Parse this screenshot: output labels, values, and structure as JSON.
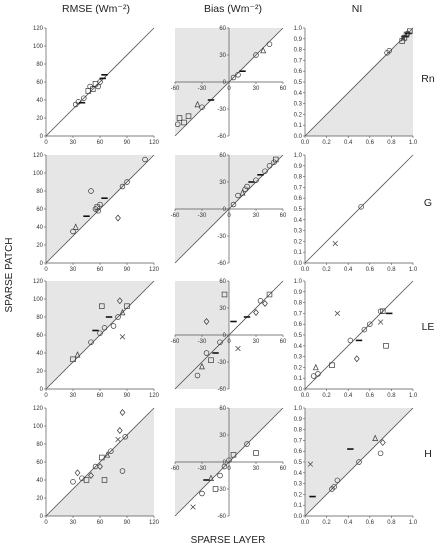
{
  "figure": {
    "x_axis_label": "SPARSE LAYER",
    "y_axis_label": "SPARSE PATCH",
    "column_titles": [
      "RMSE (Wm⁻²)",
      "Bias (Wm⁻²)",
      "NI"
    ],
    "row_labels": [
      "Rn",
      "G",
      "LE",
      "H"
    ]
  },
  "chart_data": [
    {
      "type": "scatter",
      "row": "Rn",
      "column": "RMSE",
      "xlim": [
        0,
        120
      ],
      "ylim": [
        0,
        120
      ],
      "xticks": [
        0,
        30,
        60,
        90,
        120
      ],
      "yticks": [
        0,
        20,
        40,
        60,
        80,
        100,
        120
      ],
      "shade": "none",
      "points": [
        {
          "x": 33,
          "y": 35,
          "m": "o"
        },
        {
          "x": 36,
          "y": 38,
          "m": "o"
        },
        {
          "x": 40,
          "y": 37,
          "m": "-"
        },
        {
          "x": 42,
          "y": 42,
          "m": "o"
        },
        {
          "x": 47,
          "y": 50,
          "m": "sq"
        },
        {
          "x": 49,
          "y": 55,
          "m": "o"
        },
        {
          "x": 52,
          "y": 52,
          "m": "sq"
        },
        {
          "x": 55,
          "y": 58,
          "m": "sq"
        },
        {
          "x": 58,
          "y": 55,
          "m": "o"
        },
        {
          "x": 60,
          "y": 60,
          "m": "o"
        },
        {
          "x": 63,
          "y": 64,
          "m": "-"
        },
        {
          "x": 65,
          "y": 68,
          "m": "-"
        }
      ]
    },
    {
      "type": "scatter",
      "row": "Rn",
      "column": "Bias",
      "xlim": [
        -60,
        60
      ],
      "ylim": [
        -60,
        60
      ],
      "xticks": [
        -60,
        -30,
        0,
        30,
        60
      ],
      "yticks": [
        -60,
        -30,
        0,
        30,
        60
      ],
      "shade": "upper",
      "points": [
        {
          "x": -57,
          "y": -47,
          "m": "o"
        },
        {
          "x": -55,
          "y": -40,
          "m": "sq"
        },
        {
          "x": -50,
          "y": -45,
          "m": "sq"
        },
        {
          "x": -45,
          "y": -38,
          "m": "sq"
        },
        {
          "x": -35,
          "y": -25,
          "m": "tri"
        },
        {
          "x": -30,
          "y": -28,
          "m": "o"
        },
        {
          "x": -20,
          "y": -20,
          "m": "-"
        },
        {
          "x": 5,
          "y": 5,
          "m": "o"
        },
        {
          "x": 10,
          "y": 8,
          "m": "o"
        },
        {
          "x": 15,
          "y": 12,
          "m": "-"
        },
        {
          "x": 30,
          "y": 30,
          "m": "o"
        },
        {
          "x": 38,
          "y": 35,
          "m": "tri"
        },
        {
          "x": 45,
          "y": 42,
          "m": "o"
        }
      ]
    },
    {
      "type": "scatter",
      "row": "Rn",
      "column": "NI",
      "xlim": [
        0,
        1
      ],
      "ylim": [
        0,
        1
      ],
      "xticks": [
        0,
        0.2,
        0.4,
        0.6,
        0.8,
        1
      ],
      "yticks": [
        0,
        0.1,
        0.2,
        0.3,
        0.4,
        0.5,
        0.6,
        0.7,
        0.8,
        0.9,
        1
      ],
      "shade": "lower",
      "points": [
        {
          "x": 0.76,
          "y": 0.77,
          "m": "o"
        },
        {
          "x": 0.78,
          "y": 0.79,
          "m": "o"
        },
        {
          "x": 0.9,
          "y": 0.88,
          "m": "sq"
        },
        {
          "x": 0.91,
          "y": 0.9,
          "m": "x"
        },
        {
          "x": 0.92,
          "y": 0.91,
          "m": "sq"
        },
        {
          "x": 0.93,
          "y": 0.92,
          "m": "-"
        },
        {
          "x": 0.94,
          "y": 0.94,
          "m": "sq"
        },
        {
          "x": 0.95,
          "y": 0.95,
          "m": "o"
        },
        {
          "x": 0.96,
          "y": 0.95,
          "m": "-"
        },
        {
          "x": 0.97,
          "y": 0.97,
          "m": "sq"
        }
      ]
    },
    {
      "type": "scatter",
      "row": "G",
      "column": "RMSE",
      "xlim": [
        0,
        120
      ],
      "ylim": [
        0,
        120
      ],
      "xticks": [
        0,
        30,
        60,
        90,
        120
      ],
      "yticks": [
        0,
        20,
        40,
        60,
        80,
        100,
        120
      ],
      "shade": "upper",
      "points": [
        {
          "x": 30,
          "y": 35,
          "m": "o"
        },
        {
          "x": 33,
          "y": 40,
          "m": "tri"
        },
        {
          "x": 45,
          "y": 52,
          "m": "-"
        },
        {
          "x": 50,
          "y": 80,
          "m": "o"
        },
        {
          "x": 55,
          "y": 60,
          "m": "o"
        },
        {
          "x": 57,
          "y": 62,
          "m": "sq"
        },
        {
          "x": 58,
          "y": 58,
          "m": "o"
        },
        {
          "x": 60,
          "y": 65,
          "m": "o"
        },
        {
          "x": 65,
          "y": 72,
          "m": "-"
        },
        {
          "x": 80,
          "y": 50,
          "m": "dia"
        },
        {
          "x": 85,
          "y": 85,
          "m": "o"
        },
        {
          "x": 90,
          "y": 90,
          "m": "o"
        },
        {
          "x": 110,
          "y": 115,
          "m": "o"
        }
      ]
    },
    {
      "type": "scatter",
      "row": "G",
      "column": "Bias",
      "xlim": [
        -60,
        60
      ],
      "ylim": [
        -60,
        60
      ],
      "xticks": [
        -60,
        -30,
        0,
        30,
        60
      ],
      "yticks": [
        -60,
        -30,
        0,
        30,
        60
      ],
      "shade": "upper",
      "points": [
        {
          "x": 5,
          "y": 5,
          "m": "o"
        },
        {
          "x": 10,
          "y": 15,
          "m": "o"
        },
        {
          "x": 15,
          "y": 18,
          "m": "tri"
        },
        {
          "x": 18,
          "y": 22,
          "m": "o"
        },
        {
          "x": 20,
          "y": 25,
          "m": "o"
        },
        {
          "x": 25,
          "y": 30,
          "m": "-"
        },
        {
          "x": 30,
          "y": 32,
          "m": "o"
        },
        {
          "x": 35,
          "y": 38,
          "m": "-"
        },
        {
          "x": 40,
          "y": 42,
          "m": "o"
        },
        {
          "x": 45,
          "y": 48,
          "m": "o"
        },
        {
          "x": 50,
          "y": 52,
          "m": "o"
        },
        {
          "x": 52,
          "y": 55,
          "m": "sq"
        }
      ]
    },
    {
      "type": "scatter",
      "row": "G",
      "column": "NI",
      "xlim": [
        0,
        1
      ],
      "ylim": [
        0,
        1
      ],
      "xticks": [
        0,
        0.2,
        0.4,
        0.6,
        0.8,
        1
      ],
      "yticks": [
        0,
        0.1,
        0.2,
        0.3,
        0.4,
        0.5,
        0.6,
        0.7,
        0.8,
        0.9,
        1
      ],
      "shade": "none",
      "points": [
        {
          "x": 0.28,
          "y": 0.18,
          "m": "x"
        },
        {
          "x": 0.52,
          "y": 0.52,
          "m": "o"
        }
      ]
    },
    {
      "type": "scatter",
      "row": "LE",
      "column": "RMSE",
      "xlim": [
        0,
        120
      ],
      "ylim": [
        0,
        120
      ],
      "xticks": [
        0,
        30,
        60,
        90,
        120
      ],
      "yticks": [
        0,
        20,
        40,
        60,
        80,
        100,
        120
      ],
      "shade": "upper",
      "points": [
        {
          "x": 30,
          "y": 33,
          "m": "sq"
        },
        {
          "x": 35,
          "y": 38,
          "m": "tri"
        },
        {
          "x": 50,
          "y": 52,
          "m": "o"
        },
        {
          "x": 55,
          "y": 65,
          "m": "-"
        },
        {
          "x": 60,
          "y": 62,
          "m": "o"
        },
        {
          "x": 62,
          "y": 92,
          "m": "sq"
        },
        {
          "x": 65,
          "y": 68,
          "m": "o"
        },
        {
          "x": 70,
          "y": 80,
          "m": "-"
        },
        {
          "x": 75,
          "y": 70,
          "m": "o"
        },
        {
          "x": 80,
          "y": 80,
          "m": "o"
        },
        {
          "x": 82,
          "y": 98,
          "m": "dia"
        },
        {
          "x": 85,
          "y": 85,
          "m": "tri"
        },
        {
          "x": 85,
          "y": 58,
          "m": "x"
        },
        {
          "x": 90,
          "y": 92,
          "m": "sq"
        }
      ]
    },
    {
      "type": "scatter",
      "row": "LE",
      "column": "Bias",
      "xlim": [
        -60,
        60
      ],
      "ylim": [
        -60,
        60
      ],
      "xticks": [
        -60,
        -30,
        0,
        30,
        60
      ],
      "yticks": [
        -60,
        -30,
        0,
        30,
        60
      ],
      "shade": "both",
      "points": [
        {
          "x": -35,
          "y": -45,
          "m": "o"
        },
        {
          "x": -30,
          "y": -35,
          "m": "tri"
        },
        {
          "x": -25,
          "y": -20,
          "m": "o"
        },
        {
          "x": -20,
          "y": -28,
          "m": "sq"
        },
        {
          "x": -15,
          "y": -20,
          "m": "-"
        },
        {
          "x": -10,
          "y": -8,
          "m": "o"
        },
        {
          "x": -5,
          "y": 45,
          "m": "sq"
        },
        {
          "x": -25,
          "y": 15,
          "m": "dia"
        },
        {
          "x": 5,
          "y": 15,
          "m": "-"
        },
        {
          "x": 10,
          "y": -15,
          "m": "x"
        },
        {
          "x": 20,
          "y": 20,
          "m": "-"
        },
        {
          "x": 30,
          "y": 25,
          "m": "dia"
        },
        {
          "x": 35,
          "y": 38,
          "m": "o"
        },
        {
          "x": 40,
          "y": 35,
          "m": "dia"
        },
        {
          "x": 45,
          "y": 45,
          "m": "sq"
        }
      ]
    },
    {
      "type": "scatter",
      "row": "LE",
      "column": "NI",
      "xlim": [
        0,
        1
      ],
      "ylim": [
        0,
        1
      ],
      "xticks": [
        0,
        0.2,
        0.4,
        0.6,
        0.8,
        1
      ],
      "yticks": [
        0,
        0.1,
        0.2,
        0.3,
        0.4,
        0.5,
        0.6,
        0.7,
        0.8,
        0.9,
        1
      ],
      "shade": "none",
      "points": [
        {
          "x": 0.08,
          "y": 0.12,
          "m": "o"
        },
        {
          "x": 0.1,
          "y": 0.2,
          "m": "tri"
        },
        {
          "x": 0.12,
          "y": 0.14,
          "m": "o"
        },
        {
          "x": 0.25,
          "y": 0.22,
          "m": "sq"
        },
        {
          "x": 0.3,
          "y": 0.7,
          "m": "x"
        },
        {
          "x": 0.42,
          "y": 0.45,
          "m": "o"
        },
        {
          "x": 0.48,
          "y": 0.28,
          "m": "dia"
        },
        {
          "x": 0.5,
          "y": 0.45,
          "m": "-"
        },
        {
          "x": 0.55,
          "y": 0.55,
          "m": "o"
        },
        {
          "x": 0.6,
          "y": 0.6,
          "m": "o"
        },
        {
          "x": 0.7,
          "y": 0.72,
          "m": "o"
        },
        {
          "x": 0.72,
          "y": 0.72,
          "m": "sq"
        },
        {
          "x": 0.7,
          "y": 0.62,
          "m": "x"
        },
        {
          "x": 0.75,
          "y": 0.4,
          "m": "sq"
        },
        {
          "x": 0.78,
          "y": 0.7,
          "m": "-"
        }
      ]
    },
    {
      "type": "scatter",
      "row": "H",
      "column": "RMSE",
      "xlim": [
        0,
        120
      ],
      "ylim": [
        0,
        120
      ],
      "xticks": [
        0,
        30,
        60,
        90,
        120
      ],
      "yticks": [
        0,
        20,
        40,
        60,
        80,
        100,
        120
      ],
      "shade": "lower",
      "points": [
        {
          "x": 30,
          "y": 38,
          "m": "o"
        },
        {
          "x": 35,
          "y": 48,
          "m": "dia"
        },
        {
          "x": 40,
          "y": 42,
          "m": "o"
        },
        {
          "x": 45,
          "y": 40,
          "m": "sq"
        },
        {
          "x": 50,
          "y": 45,
          "m": "dia"
        },
        {
          "x": 55,
          "y": 55,
          "m": "o"
        },
        {
          "x": 60,
          "y": 55,
          "m": "dia"
        },
        {
          "x": 65,
          "y": 40,
          "m": "sq"
        },
        {
          "x": 62,
          "y": 65,
          "m": "sq"
        },
        {
          "x": 68,
          "y": 68,
          "m": "tri"
        },
        {
          "x": 72,
          "y": 72,
          "m": "o"
        },
        {
          "x": 80,
          "y": 85,
          "m": "x"
        },
        {
          "x": 82,
          "y": 95,
          "m": "dia"
        },
        {
          "x": 85,
          "y": 115,
          "m": "dia"
        },
        {
          "x": 85,
          "y": 50,
          "m": "o"
        },
        {
          "x": 88,
          "y": 88,
          "m": "o"
        }
      ]
    },
    {
      "type": "scatter",
      "row": "H",
      "column": "Bias",
      "xlim": [
        -60,
        60
      ],
      "ylim": [
        -60,
        60
      ],
      "xticks": [
        -60,
        -30,
        0,
        30,
        60
      ],
      "yticks": [
        -60,
        -30,
        0,
        30,
        60
      ],
      "shade": "upper",
      "points": [
        {
          "x": -40,
          "y": -50,
          "m": "x"
        },
        {
          "x": -30,
          "y": -35,
          "m": "o"
        },
        {
          "x": -25,
          "y": -20,
          "m": "-"
        },
        {
          "x": -20,
          "y": -18,
          "m": "tri"
        },
        {
          "x": -15,
          "y": -30,
          "m": "sq"
        },
        {
          "x": -10,
          "y": -15,
          "m": "o"
        },
        {
          "x": -5,
          "y": -5,
          "m": "o"
        },
        {
          "x": 0,
          "y": 2,
          "m": "o"
        },
        {
          "x": 5,
          "y": 8,
          "m": "sq"
        },
        {
          "x": 20,
          "y": 20,
          "m": "o"
        },
        {
          "x": 30,
          "y": 10,
          "m": "sq"
        }
      ]
    },
    {
      "type": "scatter",
      "row": "H",
      "column": "NI",
      "xlim": [
        0,
        1
      ],
      "ylim": [
        0,
        1
      ],
      "xticks": [
        0,
        0.2,
        0.4,
        0.6,
        0.8,
        1
      ],
      "yticks": [
        0,
        0.1,
        0.2,
        0.3,
        0.4,
        0.5,
        0.6,
        0.7,
        0.8,
        0.9,
        1
      ],
      "shade": "upper",
      "points": [
        {
          "x": 0.05,
          "y": 0.48,
          "m": "x"
        },
        {
          "x": 0.07,
          "y": 0.18,
          "m": "-"
        },
        {
          "x": 0.25,
          "y": 0.25,
          "m": "o"
        },
        {
          "x": 0.27,
          "y": 0.27,
          "m": "o"
        },
        {
          "x": 0.3,
          "y": 0.33,
          "m": "o"
        },
        {
          "x": 0.42,
          "y": 0.62,
          "m": "-"
        },
        {
          "x": 0.5,
          "y": 0.5,
          "m": "o"
        },
        {
          "x": 0.65,
          "y": 0.72,
          "m": "tri"
        },
        {
          "x": 0.7,
          "y": 0.58,
          "m": "o"
        },
        {
          "x": 0.72,
          "y": 0.68,
          "m": "dia"
        }
      ]
    }
  ]
}
